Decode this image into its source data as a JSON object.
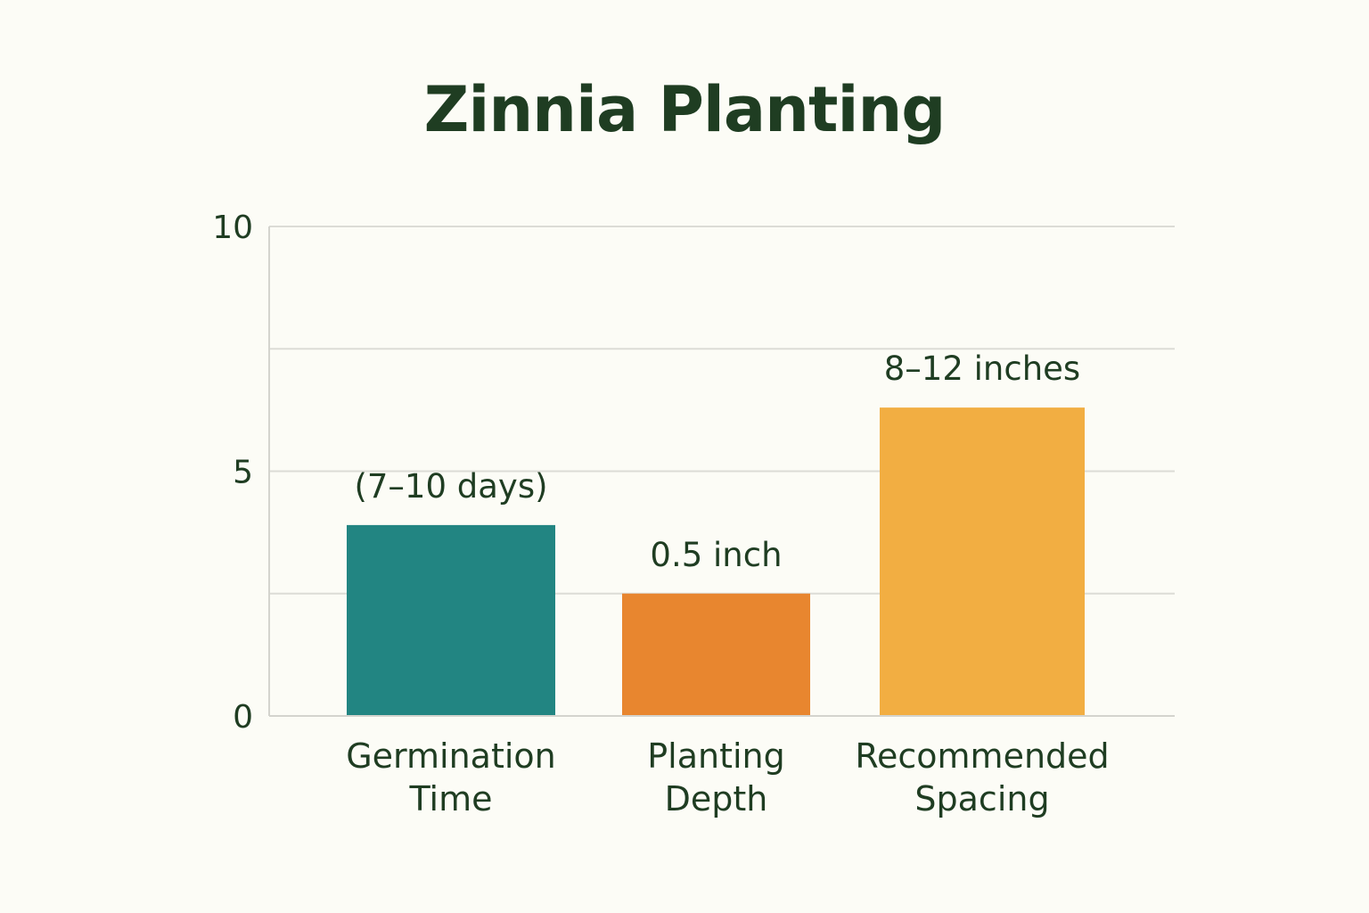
{
  "chart_data": {
    "type": "bar",
    "title": "Zinnia Planting",
    "categories": [
      [
        "Germination",
        "Time"
      ],
      [
        "Planting",
        "Depth"
      ],
      [
        "Recommended",
        "Spacing"
      ]
    ],
    "values": [
      3.9,
      2.5,
      6.3
    ],
    "data_labels": [
      "(7–10 days)",
      "0.5 inch",
      "8–12 inches"
    ],
    "colors": [
      "#228582",
      "#e8862f",
      "#f2ae42"
    ],
    "yticks": [
      0,
      5,
      10
    ],
    "ylim": [
      0,
      10
    ],
    "grid": true,
    "xlabel": "",
    "ylabel": ""
  }
}
